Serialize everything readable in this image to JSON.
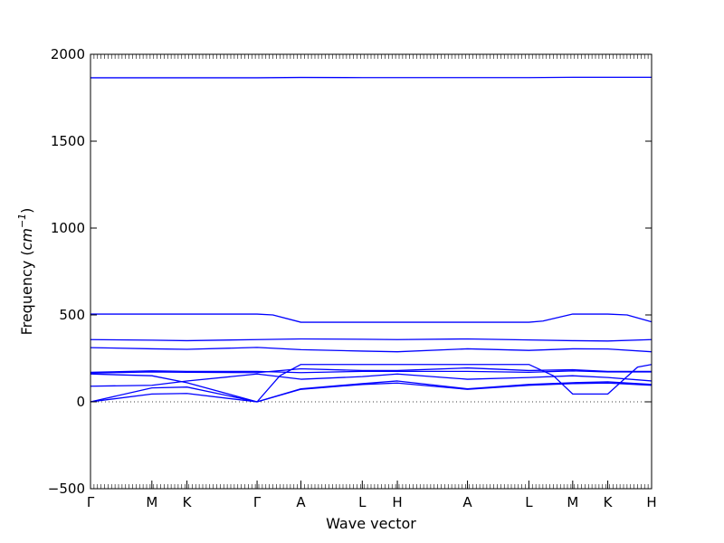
{
  "chart_data": {
    "type": "line",
    "xlabel": "Wave vector",
    "ylabel": "Frequency",
    "ylabel_unit_base": "cm",
    "ylabel_unit_exp": "−1",
    "ylim": [
      -500,
      2000
    ],
    "yticks": [
      -500,
      0,
      500,
      1000,
      1500,
      2000
    ],
    "ytick_labels": [
      "−500",
      "0",
      "500",
      "1000",
      "1500",
      "2000"
    ],
    "xlim": [
      0,
      16
    ],
    "xticks": [
      {
        "x": 0,
        "label": "Γ"
      },
      {
        "x": 1.75,
        "label": "M"
      },
      {
        "x": 2.75,
        "label": "K"
      },
      {
        "x": 4.75,
        "label": "Γ"
      },
      {
        "x": 6.0,
        "label": "A"
      },
      {
        "x": 7.75,
        "label": "L"
      },
      {
        "x": 8.75,
        "label": "H"
      },
      {
        "x": 10.75,
        "label": "A"
      },
      {
        "x": 12.5,
        "label": "L"
      },
      {
        "x": 13.75,
        "label": "M"
      },
      {
        "x": 14.75,
        "label": "K"
      },
      {
        "x": 16.0,
        "label": "H"
      }
    ],
    "zero_line": {
      "y": 0,
      "style": "dotted"
    },
    "grid": false,
    "line_color": "#0000ff",
    "series": [
      {
        "x": [
          0,
          4.75,
          6,
          7.75,
          8.75,
          10.75,
          12.5,
          13.75,
          14.75,
          16
        ],
        "values": [
          1865,
          1865,
          1867,
          1866,
          1866,
          1866,
          1866,
          1868,
          1868,
          1868
        ]
      },
      {
        "x": [
          0,
          1.75,
          2.75,
          4.75,
          5.2,
          6,
          7.75,
          8.75,
          10.75,
          12.5,
          12.9,
          13.75,
          14.75,
          15.3,
          16
        ],
        "values": [
          505,
          505,
          505,
          505,
          500,
          458,
          458,
          458,
          458,
          458,
          465,
          505,
          505,
          500,
          460
        ]
      },
      {
        "x": [
          0,
          1.75,
          2.75,
          4.75,
          6,
          7.75,
          8.75,
          10.75,
          12.5,
          13.75,
          14.75,
          16
        ],
        "values": [
          358,
          355,
          352,
          358,
          362,
          360,
          358,
          362,
          356,
          352,
          350,
          358
        ]
      },
      {
        "x": [
          0,
          1.75,
          2.75,
          4.75,
          6,
          7.75,
          8.75,
          10.75,
          12.5,
          13.75,
          14.75,
          16
        ],
        "values": [
          312,
          305,
          302,
          313,
          300,
          292,
          288,
          305,
          296,
          305,
          304,
          288
        ]
      },
      {
        "x": [
          0,
          1.75,
          2.75,
          4.75,
          5.4,
          6,
          7.75,
          8.75,
          10.75,
          12.5,
          13.2,
          13.75,
          14.75,
          15.6,
          16
        ],
        "values": [
          160,
          150,
          110,
          0,
          150,
          215,
          215,
          215,
          215,
          215,
          150,
          45,
          45,
          200,
          215
        ]
      },
      {
        "x": [
          0,
          1.75,
          2.75,
          4.75,
          6,
          7.75,
          8.75,
          10.75,
          12.5,
          13.75,
          14.75,
          16
        ],
        "values": [
          170,
          178,
          175,
          175,
          168,
          175,
          175,
          175,
          170,
          178,
          172,
          172
        ]
      },
      {
        "x": [
          0,
          1.75,
          2.75,
          4.75,
          6,
          7.75,
          8.75,
          10.75,
          12.5,
          13.75,
          14.75,
          16
        ],
        "values": [
          165,
          172,
          170,
          168,
          190,
          180,
          180,
          195,
          180,
          185,
          175,
          175
        ]
      },
      {
        "x": [
          0,
          1.75,
          2.75,
          4.75,
          6,
          7.75,
          8.75,
          10.75,
          12.5,
          13.75,
          14.75,
          16
        ],
        "values": [
          90,
          95,
          120,
          160,
          130,
          145,
          160,
          130,
          140,
          150,
          140,
          120
        ]
      },
      {
        "x": [
          0,
          1.75,
          2.75,
          4.75,
          6,
          7.75,
          8.75,
          10.75,
          12.5,
          13.75,
          14.75,
          16
        ],
        "values": [
          0,
          80,
          85,
          0,
          75,
          105,
          120,
          75,
          100,
          110,
          115,
          100
        ]
      },
      {
        "x": [
          0,
          1.75,
          2.75,
          4.75,
          6,
          7.75,
          8.75,
          10.75,
          12.5,
          13.75,
          14.75,
          16
        ],
        "values": [
          0,
          45,
          48,
          0,
          72,
          100,
          108,
          72,
          95,
          105,
          108,
          95
        ]
      }
    ]
  }
}
